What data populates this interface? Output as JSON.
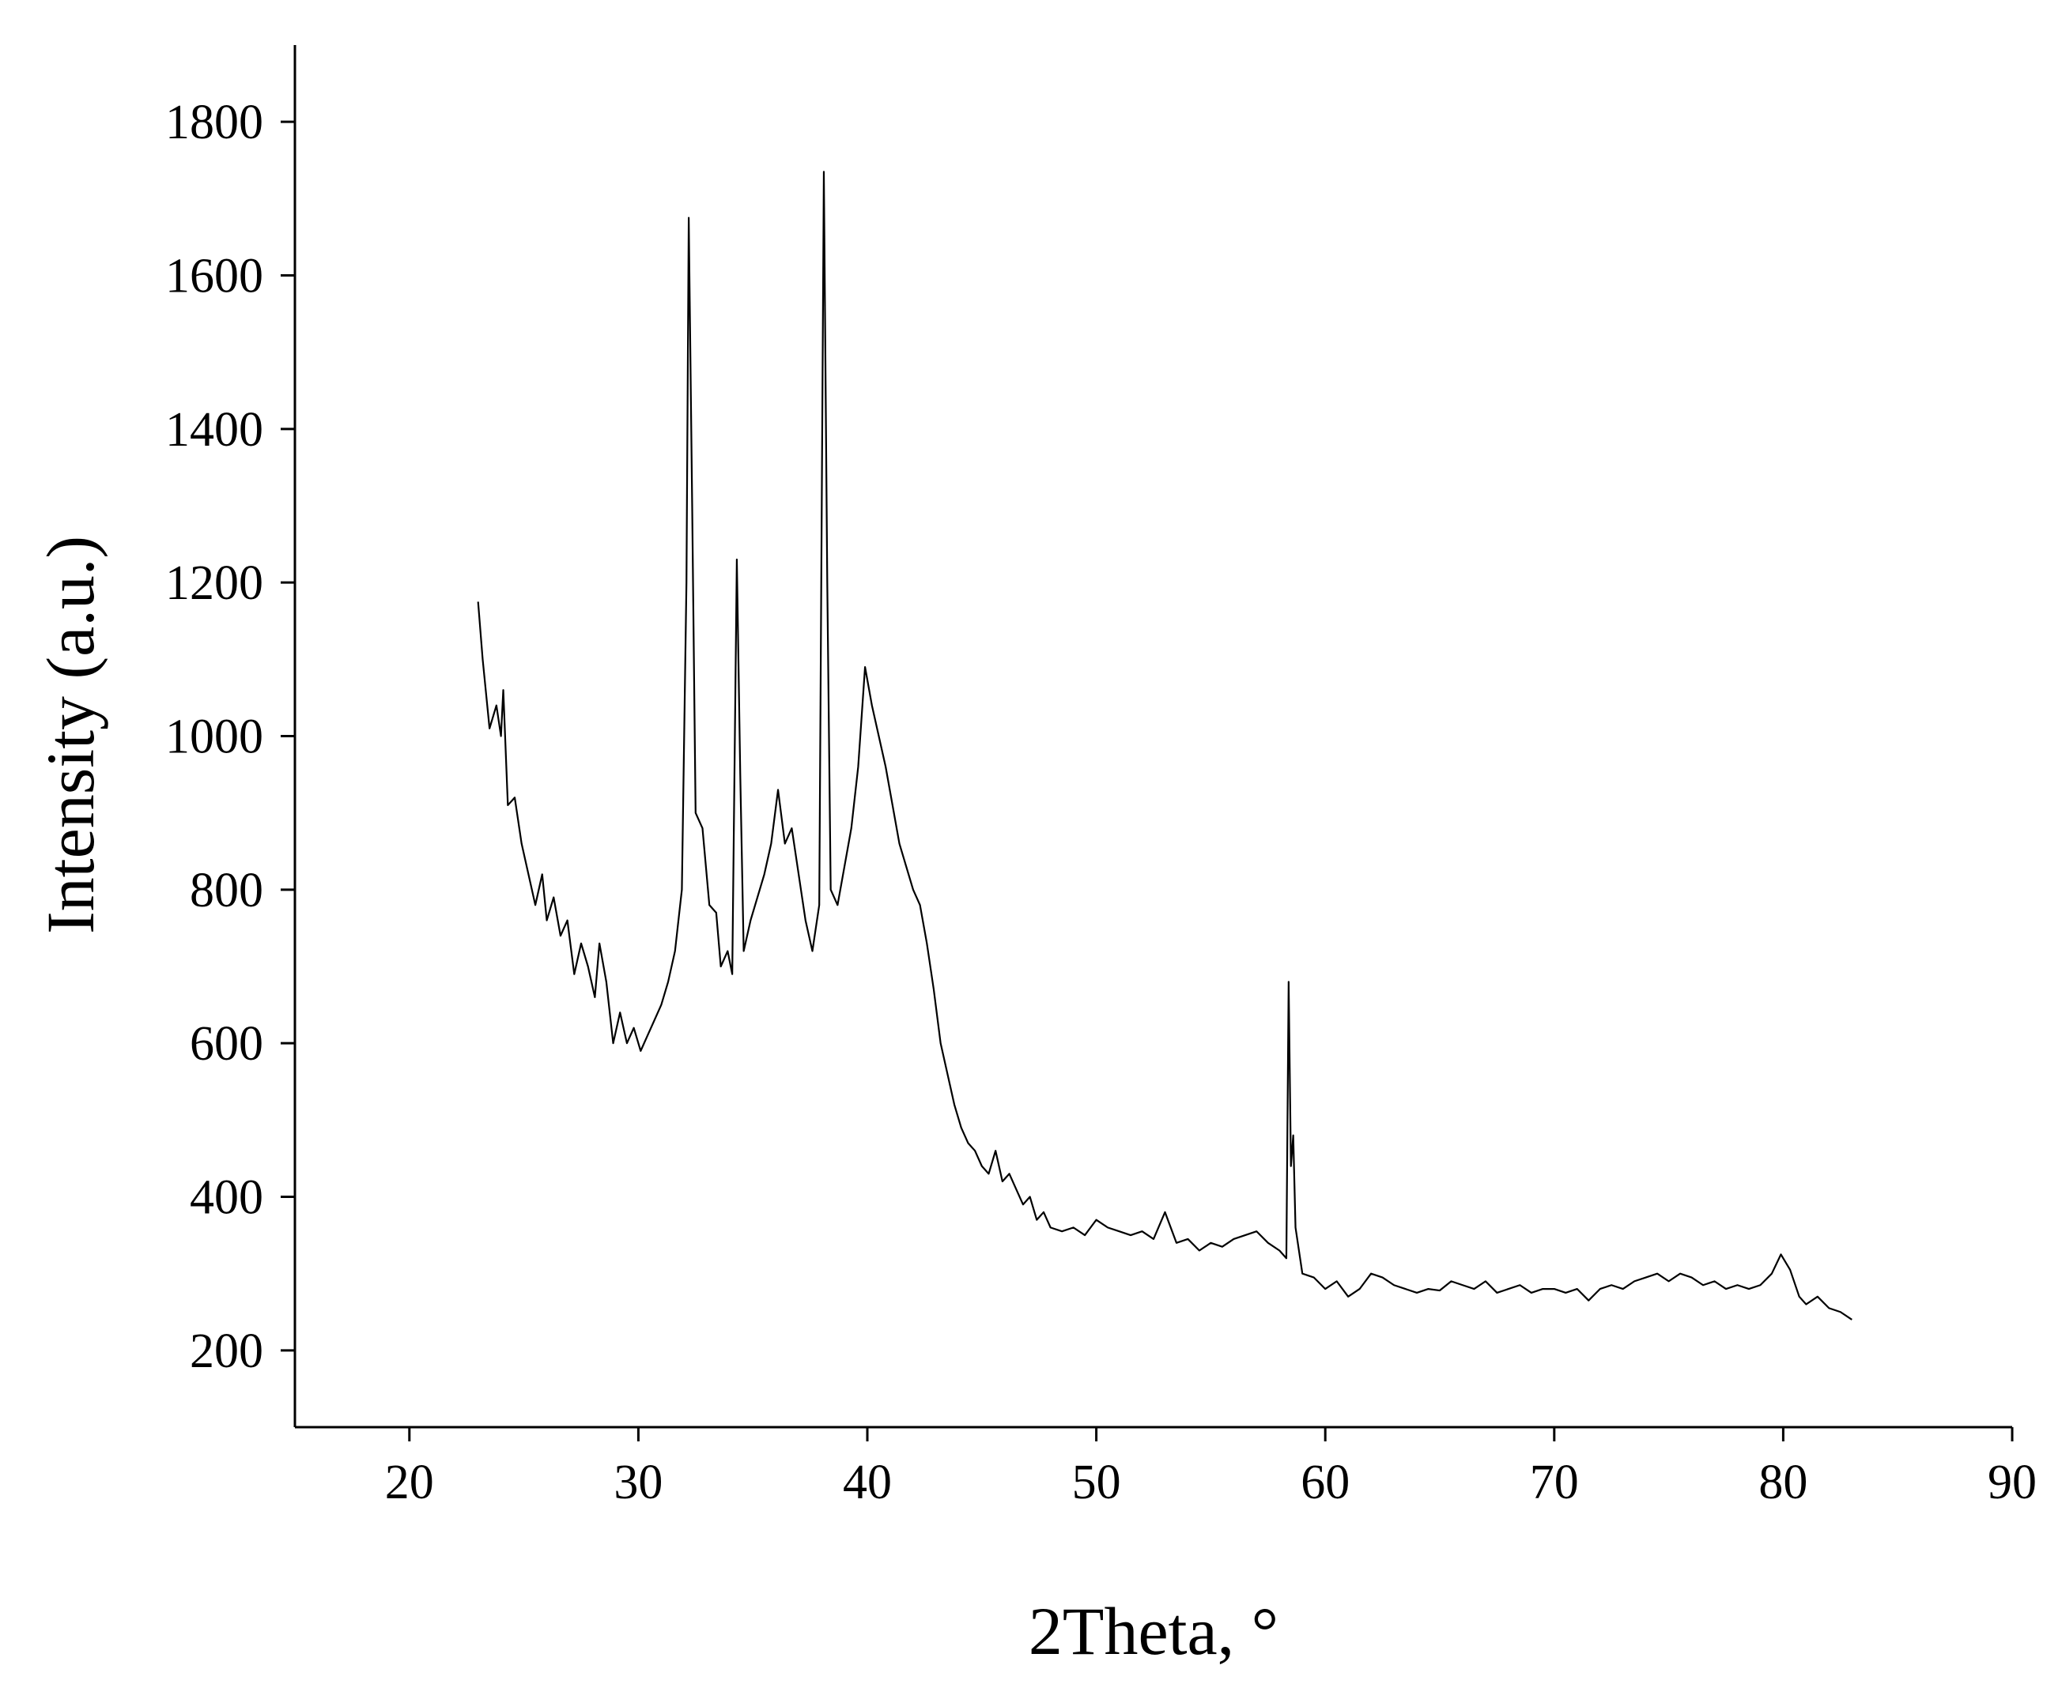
{
  "chart_data": {
    "type": "line",
    "x_label": "2Theta, °",
    "y_label": "Intensity (a.u.)",
    "xlim": [
      15,
      90
    ],
    "ylim": [
      100,
      1900
    ],
    "xticks": [
      20,
      30,
      40,
      50,
      60,
      70,
      80,
      90
    ],
    "yticks": [
      200,
      400,
      600,
      800,
      1000,
      1200,
      1400,
      1600,
      1800
    ],
    "grid": false,
    "series": [
      {
        "color": "#000000",
        "x": [
          23.0,
          23.2,
          23.5,
          23.8,
          24.0,
          24.1,
          24.3,
          24.6,
          24.9,
          25.2,
          25.5,
          25.8,
          26.0,
          26.3,
          26.6,
          26.9,
          27.2,
          27.5,
          27.8,
          28.1,
          28.3,
          28.6,
          28.9,
          29.2,
          29.5,
          29.8,
          30.1,
          30.4,
          30.7,
          31.0,
          31.3,
          31.6,
          31.9,
          32.1,
          32.2,
          32.35,
          32.5,
          32.8,
          33.1,
          33.4,
          33.6,
          33.9,
          34.1,
          34.3,
          34.45,
          34.6,
          34.9,
          35.2,
          35.5,
          35.8,
          36.1,
          36.4,
          36.7,
          37.0,
          37.3,
          37.6,
          37.9,
          38.1,
          38.25,
          38.4,
          38.7,
          39.0,
          39.3,
          39.6,
          39.9,
          40.2,
          40.5,
          40.8,
          41.1,
          41.4,
          41.7,
          42.0,
          42.3,
          42.6,
          42.9,
          43.2,
          43.5,
          43.8,
          44.1,
          44.4,
          44.7,
          45.0,
          45.3,
          45.6,
          45.9,
          46.2,
          46.5,
          46.8,
          47.1,
          47.4,
          47.7,
          48.0,
          48.5,
          49.0,
          49.5,
          50.0,
          50.5,
          51.0,
          51.5,
          52.0,
          52.5,
          53.0,
          53.5,
          54.0,
          54.5,
          55.0,
          55.5,
          56.0,
          56.5,
          57.0,
          57.5,
          58.0,
          58.3,
          58.4,
          58.5,
          58.6,
          58.7,
          59.0,
          59.5,
          60.0,
          60.5,
          61.0,
          61.5,
          62.0,
          62.5,
          63.0,
          63.5,
          64.0,
          64.5,
          65.0,
          65.5,
          66.0,
          66.5,
          67.0,
          67.5,
          68.0,
          68.5,
          69.0,
          69.5,
          70.0,
          70.5,
          71.0,
          71.5,
          72.0,
          72.5,
          73.0,
          73.5,
          74.0,
          74.5,
          75.0,
          75.5,
          76.0,
          76.5,
          77.0,
          77.5,
          78.0,
          78.5,
          79.0,
          79.5,
          79.9,
          80.3,
          80.7,
          81.0,
          81.5,
          82.0,
          82.5,
          83.0
        ],
        "values": [
          1175,
          1100,
          1010,
          1040,
          1000,
          1060,
          910,
          920,
          860,
          820,
          780,
          820,
          760,
          790,
          740,
          760,
          690,
          730,
          700,
          660,
          730,
          680,
          600,
          640,
          600,
          620,
          590,
          610,
          630,
          650,
          680,
          720,
          800,
          1200,
          1675,
          1300,
          900,
          880,
          780,
          770,
          700,
          720,
          690,
          1230,
          950,
          720,
          760,
          790,
          820,
          860,
          930,
          860,
          880,
          820,
          760,
          720,
          780,
          1735,
          1200,
          800,
          780,
          830,
          880,
          960,
          1090,
          1040,
          1000,
          960,
          910,
          860,
          830,
          800,
          780,
          730,
          670,
          600,
          560,
          520,
          490,
          470,
          460,
          440,
          430,
          460,
          420,
          430,
          410,
          390,
          400,
          370,
          380,
          360,
          355,
          360,
          350,
          370,
          360,
          355,
          350,
          355,
          345,
          380,
          340,
          345,
          330,
          340,
          335,
          345,
          350,
          355,
          340,
          330,
          320,
          680,
          440,
          480,
          360,
          300,
          295,
          280,
          290,
          270,
          280,
          300,
          295,
          285,
          280,
          275,
          280,
          278,
          290,
          285,
          280,
          290,
          275,
          280,
          285,
          275,
          280,
          280,
          275,
          280,
          265,
          280,
          285,
          280,
          290,
          295,
          300,
          290,
          300,
          295,
          285,
          290,
          280,
          285,
          280,
          285,
          300,
          325,
          305,
          270,
          260,
          270,
          255,
          250,
          240
        ]
      }
    ]
  }
}
